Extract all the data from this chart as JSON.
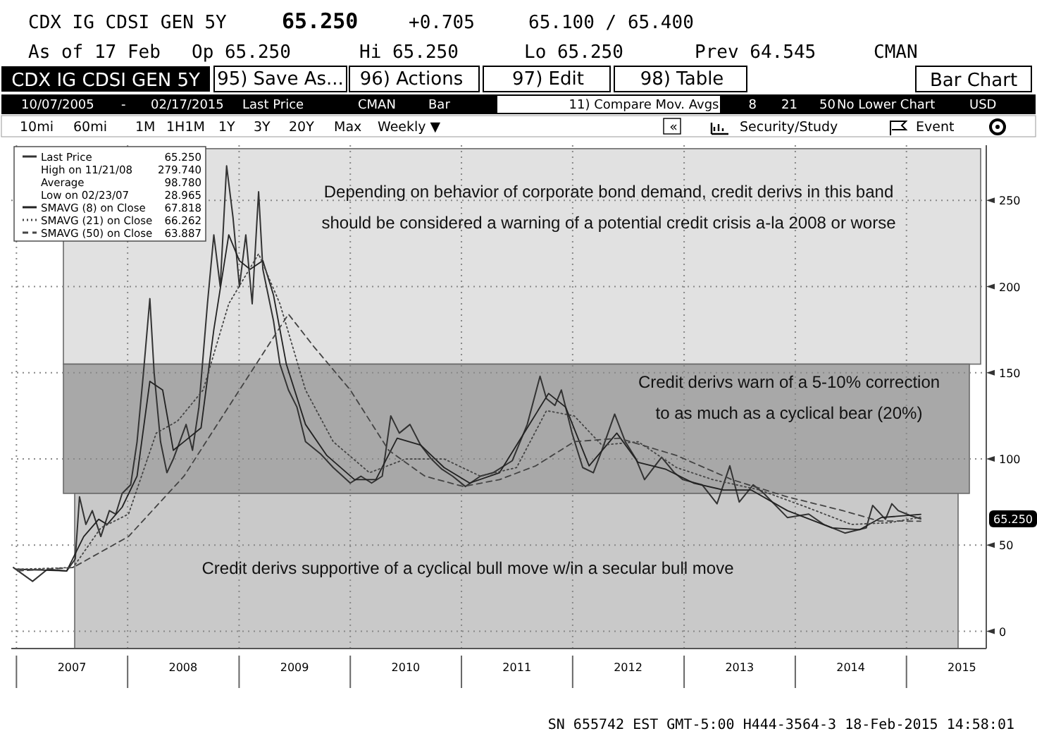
{
  "chart_data": {
    "type": "line",
    "title": "CDX IG CDSI GEN 5Y",
    "xlim": [
      "2006-12-15",
      "2015-09-20"
    ],
    "xticks": [
      {
        "value": "2007-01-01",
        "label": null
      },
      {
        "value": "2007-07-02",
        "label": "2007"
      },
      {
        "value": "2008-01-01",
        "label": null
      },
      {
        "value": "2008-07-01",
        "label": "2008"
      },
      {
        "value": "2009-01-01",
        "label": null
      },
      {
        "value": "2009-07-02",
        "label": "2009"
      },
      {
        "value": "2010-01-01",
        "label": null
      },
      {
        "value": "2010-07-02",
        "label": "2010"
      },
      {
        "value": "2011-01-01",
        "label": null
      },
      {
        "value": "2011-07-02",
        "label": "2011"
      },
      {
        "value": "2012-01-01",
        "label": null
      },
      {
        "value": "2012-07-01",
        "label": "2012"
      },
      {
        "value": "2013-01-01",
        "label": null
      },
      {
        "value": "2013-07-02",
        "label": "2013"
      },
      {
        "value": "2014-01-01",
        "label": null
      },
      {
        "value": "2014-07-02",
        "label": "2014"
      },
      {
        "value": "2015-01-01",
        "label": null
      },
      {
        "value": "2015-07-02",
        "label": "2015"
      }
    ],
    "ylim": [
      -10,
      282
    ],
    "yticks": [
      0,
      50,
      100,
      150,
      200,
      250
    ],
    "grid": true,
    "legend": "top left",
    "marker": "none",
    "series": [
      {
        "name": "Last Price",
        "color": "#333333",
        "line_style": "solid",
        "x": [
          "2006-12-22",
          "2007-02-23",
          "2007-04-13",
          "2007-06-15",
          "2007-07-13",
          "2007-07-27",
          "2007-08-17",
          "2007-09-07",
          "2007-10-05",
          "2007-11-02",
          "2007-11-23",
          "2007-12-14",
          "2008-01-11",
          "2008-02-01",
          "2008-02-22",
          "2008-03-14",
          "2008-03-28",
          "2008-04-18",
          "2008-05-09",
          "2008-05-30",
          "2008-06-20",
          "2008-07-11",
          "2008-08-01",
          "2008-08-22",
          "2008-09-19",
          "2008-10-10",
          "2008-10-31",
          "2008-11-21",
          "2008-12-12",
          "2009-01-02",
          "2009-01-23",
          "2009-02-13",
          "2009-03-06",
          "2009-03-20",
          "2009-04-24",
          "2009-05-15",
          "2009-06-12",
          "2009-07-10",
          "2009-08-07",
          "2009-09-25",
          "2009-11-06",
          "2010-01-01",
          "2010-02-05",
          "2010-03-12",
          "2010-04-16",
          "2010-05-14",
          "2010-06-11",
          "2010-07-16",
          "2010-08-20",
          "2010-09-24",
          "2010-10-29",
          "2010-12-03",
          "2011-01-14",
          "2011-03-04",
          "2011-04-15",
          "2011-06-17",
          "2011-08-05",
          "2011-09-16",
          "2011-10-07",
          "2011-11-04",
          "2011-11-25",
          "2011-12-30",
          "2012-02-03",
          "2012-03-09",
          "2012-04-06",
          "2012-05-18",
          "2012-06-22",
          "2012-07-27",
          "2012-08-24",
          "2012-10-19",
          "2012-11-30",
          "2012-12-28",
          "2013-03-01",
          "2013-04-19",
          "2013-05-31",
          "2013-07-01",
          "2013-08-16",
          "2013-09-20",
          "2013-12-06",
          "2014-02-14",
          "2014-04-04",
          "2014-06-13",
          "2014-08-22",
          "2014-09-12",
          "2014-10-24",
          "2014-11-14",
          "2014-12-05",
          "2015-01-16",
          "2015-02-17"
        ],
        "values": [
          37,
          29,
          36,
          35,
          42,
          78,
          62,
          70,
          55,
          70,
          68,
          80,
          85,
          110,
          150,
          193,
          150,
          110,
          92,
          100,
          110,
          120,
          105,
          130,
          190,
          230,
          200,
          270,
          240,
          200,
          230,
          190,
          255,
          210,
          180,
          155,
          140,
          130,
          110,
          103,
          95,
          86,
          90,
          86,
          90,
          125,
          115,
          120,
          108,
          100,
          94,
          90,
          84,
          90,
          92,
          99,
          120,
          148,
          135,
          131,
          140,
          115,
          95,
          92,
          105,
          126,
          110,
          100,
          88,
          101,
          92,
          88,
          85,
          74,
          96,
          75,
          85,
          80,
          66,
          68,
          62,
          57,
          60,
          73,
          65,
          74,
          70,
          67,
          65.25
        ]
      },
      {
        "name": "SMAVG (8) on Close",
        "color": "#222222",
        "line_style": "solid",
        "x": [
          "2007-01-05",
          "2007-06-15",
          "2007-08-10",
          "2007-09-28",
          "2007-10-26",
          "2007-12-14",
          "2008-02-01",
          "2008-03-14",
          "2008-04-25",
          "2008-05-30",
          "2008-07-04",
          "2008-08-29",
          "2008-10-10",
          "2008-11-28",
          "2009-01-02",
          "2009-02-06",
          "2009-03-20",
          "2009-04-24",
          "2009-06-05",
          "2009-08-07",
          "2009-10-16",
          "2010-01-15",
          "2010-03-26",
          "2010-06-04",
          "2010-08-20",
          "2010-11-05",
          "2011-01-28",
          "2011-05-06",
          "2011-08-19",
          "2011-10-14",
          "2011-12-09",
          "2012-02-24",
          "2012-05-25",
          "2012-08-03",
          "2012-11-02",
          "2013-02-01",
          "2013-05-10",
          "2013-08-09",
          "2013-12-06",
          "2014-05-02",
          "2014-08-01",
          "2014-10-10",
          "2015-02-17"
        ],
        "values": [
          36,
          35,
          55,
          65,
          62,
          72,
          90,
          145,
          140,
          105,
          110,
          118,
          175,
          230,
          215,
          210,
          215,
          195,
          155,
          120,
          102,
          88,
          88,
          112,
          108,
          95,
          86,
          92,
          122,
          138,
          130,
          96,
          115,
          98,
          94,
          86,
          82,
          82,
          70,
          60,
          59,
          66,
          67.818
        ]
      },
      {
        "name": "SMAVG (21) on Close",
        "color": "#444444",
        "line_style": "dotted",
        "x": [
          "2007-01-05",
          "2007-07-06",
          "2007-10-05",
          "2008-01-04",
          "2008-04-04",
          "2008-06-13",
          "2008-09-05",
          "2008-11-28",
          "2009-03-06",
          "2009-05-15",
          "2009-08-07",
          "2009-11-06",
          "2010-03-05",
          "2010-07-02",
          "2010-11-05",
          "2011-03-04",
          "2011-07-01",
          "2011-10-07",
          "2012-01-06",
          "2012-04-06",
          "2012-08-03",
          "2012-12-07",
          "2013-04-05",
          "2013-09-06",
          "2014-02-07",
          "2014-07-04",
          "2014-11-07",
          "2015-02-17"
        ],
        "values": [
          36,
          37,
          60,
          68,
          115,
          122,
          140,
          190,
          219,
          190,
          140,
          110,
          92,
          100,
          100,
          90,
          95,
          128,
          125,
          108,
          110,
          95,
          88,
          82,
          72,
          62,
          63,
          66.262
        ]
      },
      {
        "name": "SMAVG (50) on Close",
        "color": "#444444",
        "line_style": "dashed",
        "x": [
          "2007-01-05",
          "2007-07-06",
          "2008-01-04",
          "2008-07-04",
          "2009-01-02",
          "2009-06-12",
          "2009-09-04",
          "2010-01-01",
          "2010-05-07",
          "2010-09-03",
          "2011-01-07",
          "2011-05-06",
          "2011-09-02",
          "2012-01-06",
          "2012-06-01",
          "2012-12-07",
          "2013-06-07",
          "2013-12-06",
          "2014-06-06",
          "2014-10-03",
          "2015-02-17"
        ],
        "values": [
          35,
          37,
          55,
          90,
          140,
          184,
          165,
          140,
          105,
          90,
          84,
          88,
          96,
          110,
          112,
          102,
          88,
          78,
          70,
          64,
          63.887
        ]
      }
    ],
    "bands": [
      {
        "axis": "y",
        "from": 155,
        "to": 280,
        "color": "#e1e1e1",
        "label": "Depending on behavior of corporate bond demand, credit derivs in this band should be considered a warning of a potential credit crisis a-la 2008 or worse"
      },
      {
        "axis": "y",
        "from": 80,
        "to": 155,
        "color": "#a8a8a8",
        "label": "Credit derivs warn of a 5-10% correction to as much as a cyclical bear (20%)"
      },
      {
        "axis": "y",
        "from": -10,
        "to": 80,
        "color": "#c9c9c9",
        "label": "Credit derivs supportive of a cyclical bull move w/in a secular bull move"
      }
    ],
    "annotations": [
      "65.250",
      "+0.705",
      "65.100 / 65.400",
      "As of 17 Feb",
      "Op 65.250",
      "Hi 65.250",
      "Lo 65.250",
      "Prev 64.545",
      "CMAN",
      "95) Save As...",
      "96) Actions",
      "97) Edit",
      "98) Table",
      "Bar Chart",
      "10/07/2005",
      "-",
      "02/17/2015",
      "Last Price",
      "CMAN",
      "Bar",
      "11) Compare Mov. Avgs",
      "8",
      "21",
      "50",
      "No Lower Chart",
      "USD",
      "10mi",
      "60mi",
      "1M",
      "1H1M",
      "1Y",
      "3Y",
      "20Y",
      "Max",
      "Weekly ▼",
      "«",
      "Security/Study",
      "Event",
      "High on 11/21/08",
      "279.740",
      "Average",
      "98.780",
      "Low on 02/23/07",
      "28.965",
      "65.250",
      "67.818",
      "66.262",
      "63.887",
      "65.250",
      "SN 655742 EST GMT-5:00 H444-3564-3 18-Feb-2015 14:58:01"
    ]
  }
}
